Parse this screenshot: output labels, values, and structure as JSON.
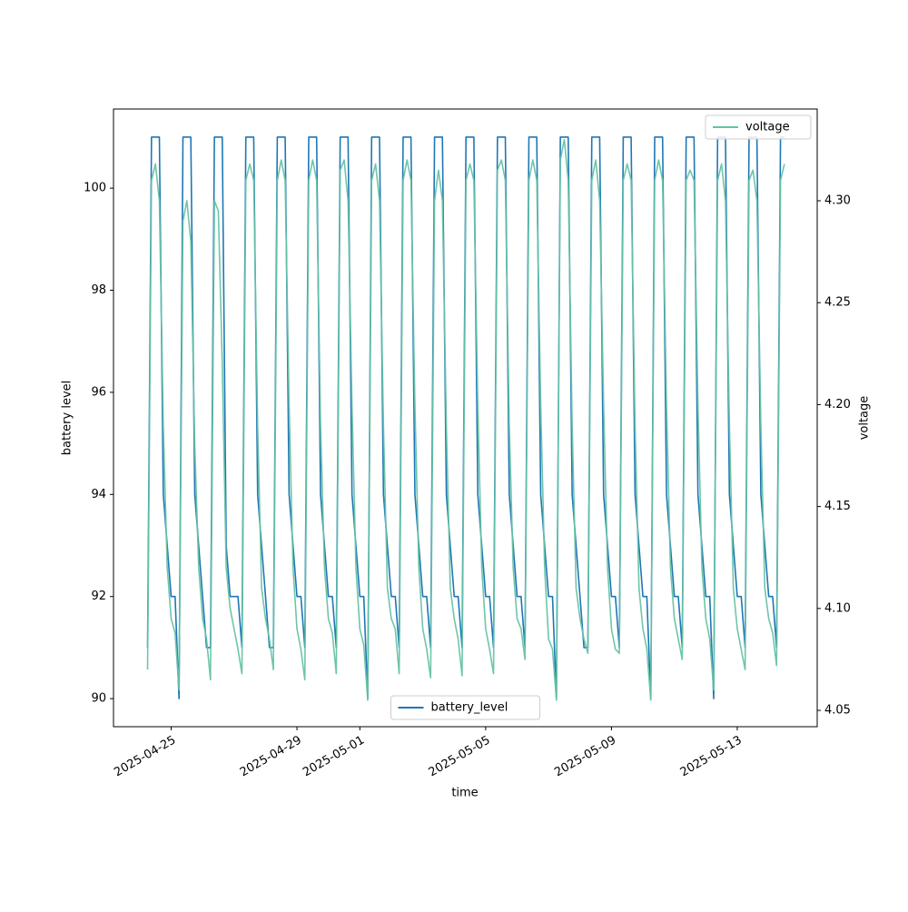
{
  "chart_data": {
    "type": "line",
    "xlabel": "time",
    "ylabel": "battery level",
    "y2label": "voltage",
    "x": [
      "2025-04-24T06:00",
      "2025-04-24T09:00",
      "2025-04-24T12:00",
      "2025-04-24T15:00",
      "2025-04-24T18:00",
      "2025-04-24T21:00",
      "2025-04-25T00:00",
      "2025-04-25T03:00",
      "2025-04-25T06:00",
      "2025-04-25T09:00",
      "2025-04-25T12:00",
      "2025-04-25T15:00",
      "2025-04-25T18:00",
      "2025-04-25T21:00",
      "2025-04-26T00:00",
      "2025-04-26T03:00",
      "2025-04-26T06:00",
      "2025-04-26T09:00",
      "2025-04-26T12:00",
      "2025-04-26T15:00",
      "2025-04-26T18:00",
      "2025-04-26T21:00",
      "2025-04-27T00:00",
      "2025-04-27T03:00",
      "2025-04-27T06:00",
      "2025-04-27T09:00",
      "2025-04-27T12:00",
      "2025-04-27T15:00",
      "2025-04-27T18:00",
      "2025-04-27T21:00",
      "2025-04-28T00:00",
      "2025-04-28T03:00",
      "2025-04-28T06:00",
      "2025-04-28T09:00",
      "2025-04-28T12:00",
      "2025-04-28T15:00",
      "2025-04-28T18:00",
      "2025-04-28T21:00",
      "2025-04-29T00:00",
      "2025-04-29T03:00",
      "2025-04-29T06:00",
      "2025-04-29T09:00",
      "2025-04-29T12:00",
      "2025-04-29T15:00",
      "2025-04-29T18:00",
      "2025-04-29T21:00",
      "2025-04-30T00:00",
      "2025-04-30T03:00",
      "2025-04-30T06:00",
      "2025-04-30T09:00",
      "2025-04-30T12:00",
      "2025-04-30T15:00",
      "2025-04-30T18:00",
      "2025-04-30T21:00",
      "2025-05-01T00:00",
      "2025-05-01T03:00",
      "2025-05-01T06:00",
      "2025-05-01T09:00",
      "2025-05-01T12:00",
      "2025-05-01T15:00",
      "2025-05-01T18:00",
      "2025-05-01T21:00",
      "2025-05-02T00:00",
      "2025-05-02T03:00",
      "2025-05-02T06:00",
      "2025-05-02T09:00",
      "2025-05-02T12:00",
      "2025-05-02T15:00",
      "2025-05-02T18:00",
      "2025-05-02T21:00",
      "2025-05-03T00:00",
      "2025-05-03T03:00",
      "2025-05-03T06:00",
      "2025-05-03T09:00",
      "2025-05-03T12:00",
      "2025-05-03T15:00",
      "2025-05-03T18:00",
      "2025-05-03T21:00",
      "2025-05-04T00:00",
      "2025-05-04T03:00",
      "2025-05-04T06:00",
      "2025-05-04T09:00",
      "2025-05-04T12:00",
      "2025-05-04T15:00",
      "2025-05-04T18:00",
      "2025-05-04T21:00",
      "2025-05-05T00:00",
      "2025-05-05T03:00",
      "2025-05-05T06:00",
      "2025-05-05T09:00",
      "2025-05-05T12:00",
      "2025-05-05T15:00",
      "2025-05-05T18:00",
      "2025-05-05T21:00",
      "2025-05-06T00:00",
      "2025-05-06T03:00",
      "2025-05-06T06:00",
      "2025-05-06T09:00",
      "2025-05-06T12:00",
      "2025-05-06T15:00",
      "2025-05-06T18:00",
      "2025-05-06T21:00",
      "2025-05-07T00:00",
      "2025-05-07T03:00",
      "2025-05-07T06:00",
      "2025-05-07T09:00",
      "2025-05-07T12:00",
      "2025-05-07T15:00",
      "2025-05-07T18:00",
      "2025-05-07T21:00",
      "2025-05-08T00:00",
      "2025-05-08T03:00",
      "2025-05-08T06:00",
      "2025-05-08T09:00",
      "2025-05-08T12:00",
      "2025-05-08T15:00",
      "2025-05-08T18:00",
      "2025-05-08T21:00",
      "2025-05-09T00:00",
      "2025-05-09T03:00",
      "2025-05-09T06:00",
      "2025-05-09T09:00",
      "2025-05-09T12:00",
      "2025-05-09T15:00",
      "2025-05-09T18:00",
      "2025-05-09T21:00",
      "2025-05-10T00:00",
      "2025-05-10T03:00",
      "2025-05-10T06:00",
      "2025-05-10T09:00",
      "2025-05-10T12:00",
      "2025-05-10T15:00",
      "2025-05-10T18:00",
      "2025-05-10T21:00",
      "2025-05-11T00:00",
      "2025-05-11T03:00",
      "2025-05-11T06:00",
      "2025-05-11T09:00",
      "2025-05-11T12:00",
      "2025-05-11T15:00",
      "2025-05-11T18:00",
      "2025-05-11T21:00",
      "2025-05-12T00:00",
      "2025-05-12T03:00",
      "2025-05-12T06:00",
      "2025-05-12T09:00",
      "2025-05-12T12:00",
      "2025-05-12T15:00",
      "2025-05-12T18:00",
      "2025-05-12T21:00",
      "2025-05-13T00:00",
      "2025-05-13T03:00",
      "2025-05-13T06:00",
      "2025-05-13T09:00",
      "2025-05-13T12:00",
      "2025-05-13T15:00",
      "2025-05-13T18:00",
      "2025-05-13T21:00",
      "2025-05-14T00:00",
      "2025-05-14T03:00",
      "2025-05-14T06:00",
      "2025-05-14T09:00",
      "2025-05-14T12:00"
    ],
    "series": [
      {
        "name": "battery_level",
        "color": "#1f77b4",
        "axis": "y",
        "values": [
          91,
          101,
          101,
          101,
          94,
          93,
          92,
          92,
          90,
          101,
          101,
          101,
          94,
          93,
          92,
          91,
          91,
          101,
          101,
          101,
          93,
          92,
          92,
          92,
          91,
          101,
          101,
          101,
          94,
          93,
          92,
          91,
          91,
          101,
          101,
          101,
          94,
          93,
          92,
          92,
          91,
          101,
          101,
          101,
          94,
          93,
          92,
          92,
          91,
          101,
          101,
          101,
          94,
          93,
          92,
          92,
          90,
          101,
          101,
          101,
          94,
          93,
          92,
          92,
          91,
          101,
          101,
          101,
          94,
          93,
          92,
          92,
          91,
          101,
          101,
          101,
          94,
          93,
          92,
          92,
          91,
          101,
          101,
          101,
          94,
          93,
          92,
          92,
          91,
          101,
          101,
          101,
          94,
          93,
          92,
          92,
          91,
          101,
          101,
          101,
          94,
          93,
          92,
          92,
          90,
          101,
          101,
          101,
          94,
          93,
          92,
          91,
          91,
          101,
          101,
          101,
          94,
          93,
          92,
          92,
          91,
          101,
          101,
          101,
          94,
          93,
          92,
          92,
          90,
          101,
          101,
          101,
          94,
          93,
          92,
          92,
          91,
          101,
          101,
          101,
          94,
          93,
          92,
          92,
          90,
          101,
          101,
          101,
          94,
          93,
          92,
          92,
          91,
          101,
          101,
          101,
          94,
          93,
          92,
          92,
          91,
          101,
          101
        ]
      },
      {
        "name": "voltage",
        "color": "#66c2a5",
        "axis": "y2",
        "values": [
          4.07,
          4.31,
          4.318,
          4.3,
          4.19,
          4.12,
          4.095,
          4.088,
          4.06,
          4.29,
          4.3,
          4.28,
          4.18,
          4.12,
          4.095,
          4.085,
          4.065,
          4.3,
          4.295,
          4.22,
          4.12,
          4.1,
          4.09,
          4.08,
          4.068,
          4.31,
          4.318,
          4.31,
          4.19,
          4.11,
          4.095,
          4.085,
          4.07,
          4.31,
          4.32,
          4.31,
          4.2,
          4.12,
          4.09,
          4.08,
          4.065,
          4.31,
          4.32,
          4.31,
          4.19,
          4.12,
          4.095,
          4.088,
          4.068,
          4.315,
          4.32,
          4.3,
          4.2,
          4.12,
          4.09,
          4.082,
          4.055,
          4.31,
          4.318,
          4.3,
          4.19,
          4.11,
          4.095,
          4.09,
          4.068,
          4.31,
          4.32,
          4.31,
          4.2,
          4.12,
          4.09,
          4.08,
          4.066,
          4.3,
          4.315,
          4.3,
          4.19,
          4.11,
          4.095,
          4.085,
          4.067,
          4.31,
          4.318,
          4.31,
          4.2,
          4.12,
          4.09,
          4.08,
          4.068,
          4.315,
          4.32,
          4.31,
          4.19,
          4.12,
          4.095,
          4.09,
          4.075,
          4.31,
          4.32,
          4.31,
          4.2,
          4.12,
          4.085,
          4.08,
          4.055,
          4.32,
          4.33,
          4.31,
          4.19,
          4.11,
          4.095,
          4.085,
          4.078,
          4.31,
          4.32,
          4.3,
          4.2,
          4.12,
          4.09,
          4.08,
          4.078,
          4.31,
          4.318,
          4.31,
          4.19,
          4.11,
          4.09,
          4.08,
          4.055,
          4.31,
          4.32,
          4.31,
          4.2,
          4.12,
          4.095,
          4.085,
          4.075,
          4.31,
          4.315,
          4.31,
          4.2,
          4.12,
          4.095,
          4.085,
          4.06,
          4.31,
          4.318,
          4.3,
          4.19,
          4.11,
          4.09,
          4.08,
          4.07,
          4.31,
          4.315,
          4.3,
          4.19,
          4.11,
          4.095,
          4.088,
          4.072,
          4.31,
          4.318
        ]
      }
    ],
    "xlim": [
      "2025-04-23T04:00",
      "2025-05-15T13:00"
    ],
    "xticks": [
      "2025-04-25",
      "2025-04-29",
      "2025-05-01",
      "2025-05-05",
      "2025-05-09",
      "2025-05-13"
    ],
    "ylim": [
      89.45,
      101.55
    ],
    "yticks": [
      90,
      92,
      94,
      96,
      98,
      100
    ],
    "y2lim": [
      4.042,
      4.345
    ],
    "y2ticks": [
      4.05,
      {
        "value": 4.1,
        "label": "4.10"
      },
      4.15,
      {
        "value": 4.2,
        "label": "4.20"
      },
      4.25,
      {
        "value": 4.3,
        "label": "4.30"
      }
    ],
    "legend": {
      "y": "lower center",
      "y2": "upper right"
    },
    "grid": false
  }
}
